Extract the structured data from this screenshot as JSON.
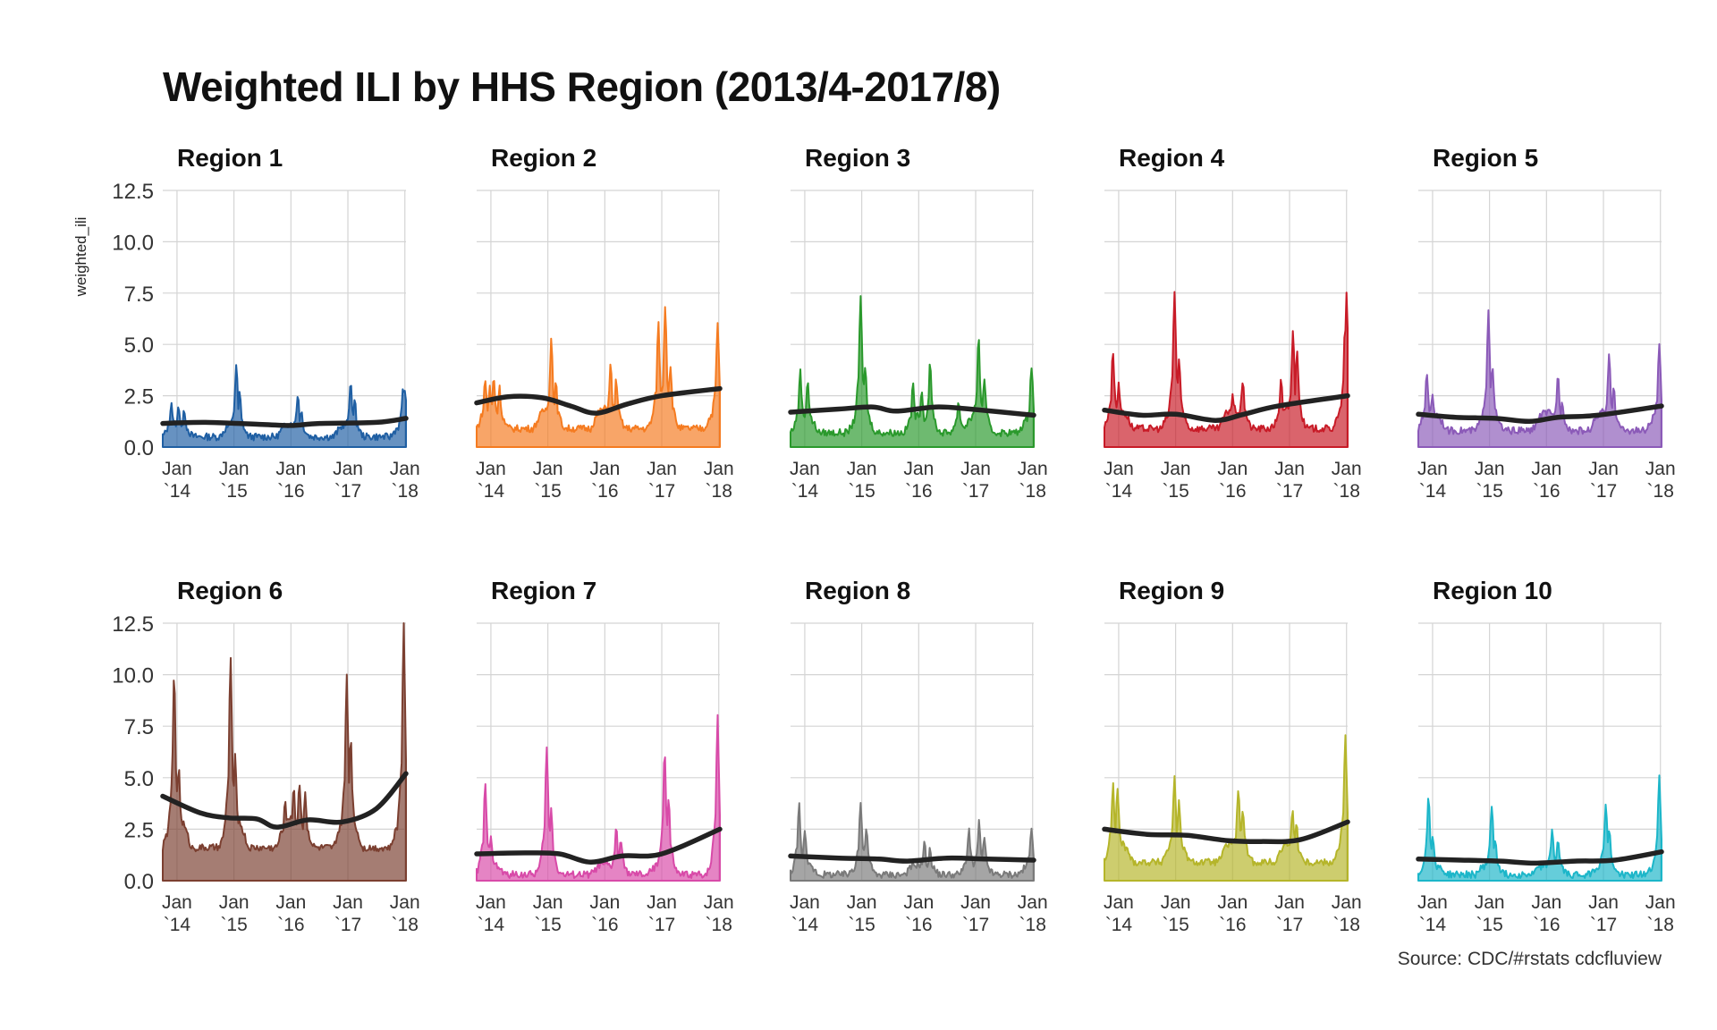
{
  "title": "Weighted ILI by HHS Region (2013/4-2017/8)",
  "caption": "Source: CDC/#rstats cdcfluview",
  "chart_data": {
    "type": "area",
    "title": "Weighted ILI by HHS Region (2013/4-2017/8)",
    "ylabel": "weighted_ili",
    "xlabel": "",
    "ylim": [
      0,
      12.5
    ],
    "y_ticks": [
      "0.0",
      "2.5",
      "5.0",
      "7.5",
      "10.0",
      "12.5"
    ],
    "x_ticks": [
      {
        "line1": "Jan",
        "line2": "`14",
        "year": 2014
      },
      {
        "line1": "Jan",
        "line2": "`15",
        "year": 2015
      },
      {
        "line1": "Jan",
        "line2": "`16",
        "year": 2016
      },
      {
        "line1": "Jan",
        "line2": "`17",
        "year": 2017
      },
      {
        "line1": "Jan",
        "line2": "`18",
        "year": 2018
      }
    ],
    "x_range": [
      2013.75,
      2018.02
    ],
    "grid": true,
    "smoothed_trend_color": "#222222",
    "facets": [
      {
        "name": "Region 1",
        "color": "#1f5fa3",
        "peaks": [
          [
            2013.9,
            2.2
          ],
          [
            2014.03,
            2.0
          ],
          [
            2014.13,
            1.8
          ],
          [
            2015.04,
            4.0
          ],
          [
            2015.1,
            2.6
          ],
          [
            2016.12,
            2.6
          ],
          [
            2016.18,
            1.8
          ],
          [
            2017.05,
            3.2
          ],
          [
            2017.12,
            2.2
          ],
          [
            2017.97,
            3.0
          ],
          [
            2018.0,
            2.7
          ]
        ],
        "trough": 0.5,
        "smooth": [
          [
            2013.75,
            1.15
          ],
          [
            2014.5,
            1.2
          ],
          [
            2015.5,
            1.1
          ],
          [
            2016.0,
            1.05
          ],
          [
            2016.5,
            1.15
          ],
          [
            2017.5,
            1.2
          ],
          [
            2018.02,
            1.4
          ]
        ]
      },
      {
        "name": "Region 2",
        "color": "#f57b20",
        "peaks": [
          [
            2013.9,
            3.3
          ],
          [
            2013.98,
            2.9
          ],
          [
            2014.05,
            3.4
          ],
          [
            2014.15,
            2.9
          ],
          [
            2015.06,
            5.3
          ],
          [
            2015.14,
            3.1
          ],
          [
            2016.1,
            4.0
          ],
          [
            2016.2,
            3.3
          ],
          [
            2016.94,
            6.0
          ],
          [
            2017.06,
            7.0
          ],
          [
            2017.15,
            4.0
          ],
          [
            2017.98,
            6.0
          ]
        ],
        "trough": 0.9,
        "smooth": [
          [
            2013.75,
            2.15
          ],
          [
            2014.3,
            2.45
          ],
          [
            2014.9,
            2.4
          ],
          [
            2015.4,
            2.0
          ],
          [
            2015.85,
            1.65
          ],
          [
            2016.4,
            2.1
          ],
          [
            2017.0,
            2.5
          ],
          [
            2018.02,
            2.85
          ]
        ]
      },
      {
        "name": "Region 3",
        "color": "#2a992c",
        "peaks": [
          [
            2013.92,
            3.7
          ],
          [
            2014.05,
            3.3
          ],
          [
            2014.98,
            7.4
          ],
          [
            2015.06,
            4.0
          ],
          [
            2015.9,
            3.0
          ],
          [
            2016.05,
            2.8
          ],
          [
            2016.2,
            4.0
          ],
          [
            2016.7,
            2.2
          ],
          [
            2017.05,
            5.3
          ],
          [
            2017.15,
            3.3
          ],
          [
            2017.98,
            4.0
          ]
        ],
        "trough": 0.7,
        "smooth": [
          [
            2013.75,
            1.7
          ],
          [
            2014.6,
            1.85
          ],
          [
            2015.2,
            1.95
          ],
          [
            2015.6,
            1.75
          ],
          [
            2016.3,
            1.95
          ],
          [
            2016.9,
            1.85
          ],
          [
            2018.02,
            1.55
          ]
        ]
      },
      {
        "name": "Region 4",
        "color": "#c81b27",
        "peaks": [
          [
            2013.9,
            4.7
          ],
          [
            2014.0,
            3.0
          ],
          [
            2014.98,
            7.6
          ],
          [
            2015.06,
            4.2
          ],
          [
            2016.0,
            2.5
          ],
          [
            2016.18,
            3.3
          ],
          [
            2016.85,
            3.2
          ],
          [
            2017.06,
            5.6
          ],
          [
            2017.13,
            4.8
          ],
          [
            2017.97,
            5.5
          ],
          [
            2018.0,
            7.4
          ]
        ],
        "trough": 0.9,
        "smooth": [
          [
            2013.75,
            1.8
          ],
          [
            2014.4,
            1.55
          ],
          [
            2015.0,
            1.6
          ],
          [
            2015.7,
            1.3
          ],
          [
            2016.2,
            1.6
          ],
          [
            2016.8,
            2.0
          ],
          [
            2018.02,
            2.5
          ]
        ]
      },
      {
        "name": "Region 5",
        "color": "#8b5ab8",
        "peaks": [
          [
            2013.9,
            3.7
          ],
          [
            2014.0,
            2.5
          ],
          [
            2014.98,
            6.7
          ],
          [
            2015.05,
            4.0
          ],
          [
            2016.2,
            3.5
          ],
          [
            2016.28,
            2.2
          ],
          [
            2017.1,
            4.4
          ],
          [
            2017.18,
            3.0
          ],
          [
            2017.98,
            4.9
          ]
        ],
        "trough": 0.8,
        "smooth": [
          [
            2013.75,
            1.6
          ],
          [
            2014.4,
            1.45
          ],
          [
            2015.1,
            1.4
          ],
          [
            2015.7,
            1.25
          ],
          [
            2016.2,
            1.45
          ],
          [
            2016.9,
            1.55
          ],
          [
            2018.02,
            2.0
          ]
        ]
      },
      {
        "name": "Region 6",
        "color": "#7b3f30",
        "peaks": [
          [
            2013.95,
            10.0
          ],
          [
            2014.03,
            5.5
          ],
          [
            2014.94,
            10.7
          ],
          [
            2015.02,
            6.0
          ],
          [
            2015.9,
            3.8
          ],
          [
            2016.05,
            4.4
          ],
          [
            2016.15,
            4.8
          ],
          [
            2016.25,
            4.2
          ],
          [
            2016.98,
            10.0
          ],
          [
            2017.05,
            7.0
          ],
          [
            2017.98,
            12.6
          ]
        ],
        "trough": 1.6,
        "smooth": [
          [
            2013.75,
            4.1
          ],
          [
            2014.4,
            3.3
          ],
          [
            2014.9,
            3.05
          ],
          [
            2015.4,
            3.0
          ],
          [
            2015.75,
            2.6
          ],
          [
            2016.3,
            2.95
          ],
          [
            2016.9,
            2.85
          ],
          [
            2017.5,
            3.5
          ],
          [
            2018.02,
            5.2
          ]
        ]
      },
      {
        "name": "Region 7",
        "color": "#d84aa8",
        "peaks": [
          [
            2013.9,
            4.6
          ],
          [
            2014.0,
            2.3
          ],
          [
            2014.98,
            6.5
          ],
          [
            2015.06,
            3.5
          ],
          [
            2016.2,
            2.5
          ],
          [
            2016.28,
            2.0
          ],
          [
            2017.05,
            6.4
          ],
          [
            2017.12,
            4.0
          ],
          [
            2017.98,
            8.0
          ]
        ],
        "trough": 0.3,
        "smooth": [
          [
            2013.75,
            1.3
          ],
          [
            2014.6,
            1.35
          ],
          [
            2015.2,
            1.3
          ],
          [
            2015.75,
            0.9
          ],
          [
            2016.3,
            1.2
          ],
          [
            2017.0,
            1.3
          ],
          [
            2018.02,
            2.5
          ]
        ]
      },
      {
        "name": "Region 8",
        "color": "#7a7a7a",
        "peaks": [
          [
            2013.9,
            3.7
          ],
          [
            2014.0,
            2.3
          ],
          [
            2014.98,
            3.8
          ],
          [
            2015.08,
            2.6
          ],
          [
            2016.1,
            1.8
          ],
          [
            2016.2,
            1.5
          ],
          [
            2016.88,
            2.5
          ],
          [
            2017.06,
            2.8
          ],
          [
            2017.15,
            2.0
          ],
          [
            2017.98,
            2.7
          ]
        ],
        "trough": 0.3,
        "smooth": [
          [
            2013.75,
            1.2
          ],
          [
            2014.6,
            1.1
          ],
          [
            2015.3,
            1.05
          ],
          [
            2015.8,
            0.95
          ],
          [
            2016.5,
            1.1
          ],
          [
            2017.2,
            1.05
          ],
          [
            2018.02,
            1.0
          ]
        ]
      },
      {
        "name": "Region 9",
        "color": "#b5b52a",
        "peaks": [
          [
            2013.9,
            4.7
          ],
          [
            2013.98,
            4.5
          ],
          [
            2014.98,
            5.1
          ],
          [
            2015.06,
            3.8
          ],
          [
            2016.1,
            4.5
          ],
          [
            2016.18,
            3.5
          ],
          [
            2017.05,
            3.4
          ],
          [
            2017.12,
            2.8
          ],
          [
            2017.98,
            7.1
          ]
        ],
        "trough": 0.9,
        "smooth": [
          [
            2013.75,
            2.5
          ],
          [
            2014.5,
            2.25
          ],
          [
            2015.2,
            2.2
          ],
          [
            2015.9,
            1.95
          ],
          [
            2016.5,
            1.9
          ],
          [
            2017.2,
            2.0
          ],
          [
            2018.02,
            2.85
          ]
        ]
      },
      {
        "name": "Region 10",
        "color": "#1cb6c9",
        "peaks": [
          [
            2013.93,
            4.1
          ],
          [
            2014.0,
            2.2
          ],
          [
            2015.04,
            3.7
          ],
          [
            2015.1,
            2.0
          ],
          [
            2016.1,
            2.5
          ],
          [
            2016.2,
            2.0
          ],
          [
            2017.04,
            3.8
          ],
          [
            2017.1,
            2.5
          ],
          [
            2017.98,
            5.0
          ]
        ],
        "trough": 0.3,
        "smooth": [
          [
            2013.75,
            1.05
          ],
          [
            2014.5,
            1.0
          ],
          [
            2015.2,
            0.95
          ],
          [
            2015.8,
            0.85
          ],
          [
            2016.5,
            0.95
          ],
          [
            2017.2,
            1.0
          ],
          [
            2018.02,
            1.4
          ]
        ]
      }
    ]
  }
}
